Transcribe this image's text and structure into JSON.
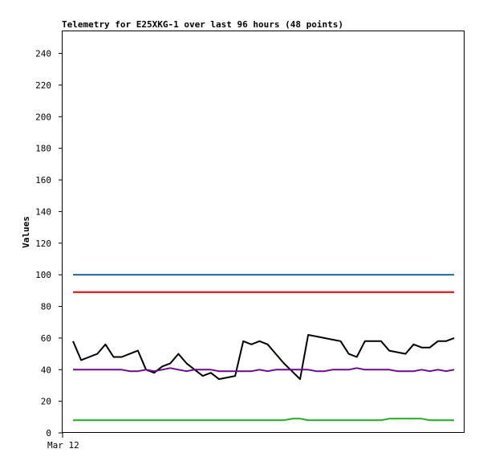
{
  "chart_data": {
    "type": "line",
    "title": "Telemetry for E25XKG-1 over last 96 hours (48 points)",
    "xlabel": "",
    "ylabel": "Values",
    "x_tick_labels": [
      "Mar 12"
    ],
    "ylim": [
      0,
      254
    ],
    "y_ticks": [
      0,
      20,
      40,
      60,
      80,
      100,
      120,
      140,
      160,
      180,
      200,
      220,
      240
    ],
    "grid": false,
    "legend": "none",
    "series": [
      {
        "color": "#1a6aa0",
        "values": [
          100,
          100,
          100,
          100,
          100,
          100,
          100,
          100,
          100,
          100,
          100,
          100,
          100,
          100,
          100,
          100,
          100,
          100,
          100,
          100,
          100,
          100,
          100,
          100,
          100,
          100,
          100,
          100,
          100,
          100,
          100,
          100,
          100,
          100,
          100,
          100,
          100,
          100,
          100,
          100,
          100,
          100,
          100,
          100,
          100,
          100,
          100,
          100
        ]
      },
      {
        "color": "#dd0000",
        "values": [
          89,
          89,
          89,
          89,
          89,
          89,
          89,
          89,
          89,
          89,
          89,
          89,
          89,
          89,
          89,
          89,
          89,
          89,
          89,
          89,
          89,
          89,
          89,
          89,
          89,
          89,
          89,
          89,
          89,
          89,
          89,
          89,
          89,
          89,
          89,
          89,
          89,
          89,
          89,
          89,
          89,
          89,
          89,
          89,
          89,
          89,
          89,
          89
        ]
      },
      {
        "color": "#000000",
        "values": [
          58,
          46,
          48,
          50,
          56,
          48,
          48,
          50,
          52,
          40,
          38,
          42,
          44,
          50,
          44,
          40,
          36,
          38,
          34,
          35,
          36,
          58,
          56,
          58,
          56,
          50,
          44,
          39,
          34,
          62,
          61,
          60,
          59,
          58,
          50,
          48,
          58,
          58,
          58,
          52,
          51,
          50,
          56,
          54,
          54,
          58,
          58,
          60
        ]
      },
      {
        "color": "#6a0a8a",
        "values": [
          40,
          40,
          40,
          40,
          40,
          40,
          40,
          39,
          39,
          40,
          39,
          40,
          41,
          40,
          39,
          40,
          40,
          40,
          39,
          39,
          39,
          39,
          39,
          40,
          39,
          40,
          40,
          40,
          40,
          40,
          39,
          39,
          40,
          40,
          40,
          41,
          40,
          40,
          40,
          40,
          39,
          39,
          39,
          40,
          39,
          40,
          39,
          40
        ]
      },
      {
        "color": "#22aa22",
        "values": [
          8,
          8,
          8,
          8,
          8,
          8,
          8,
          8,
          8,
          8,
          8,
          8,
          8,
          8,
          8,
          8,
          8,
          8,
          8,
          8,
          8,
          8,
          8,
          8,
          8,
          8,
          8,
          9,
          9,
          8,
          8,
          8,
          8,
          8,
          8,
          8,
          8,
          8,
          8,
          9,
          9,
          9,
          9,
          9,
          8,
          8,
          8,
          8
        ]
      }
    ]
  }
}
